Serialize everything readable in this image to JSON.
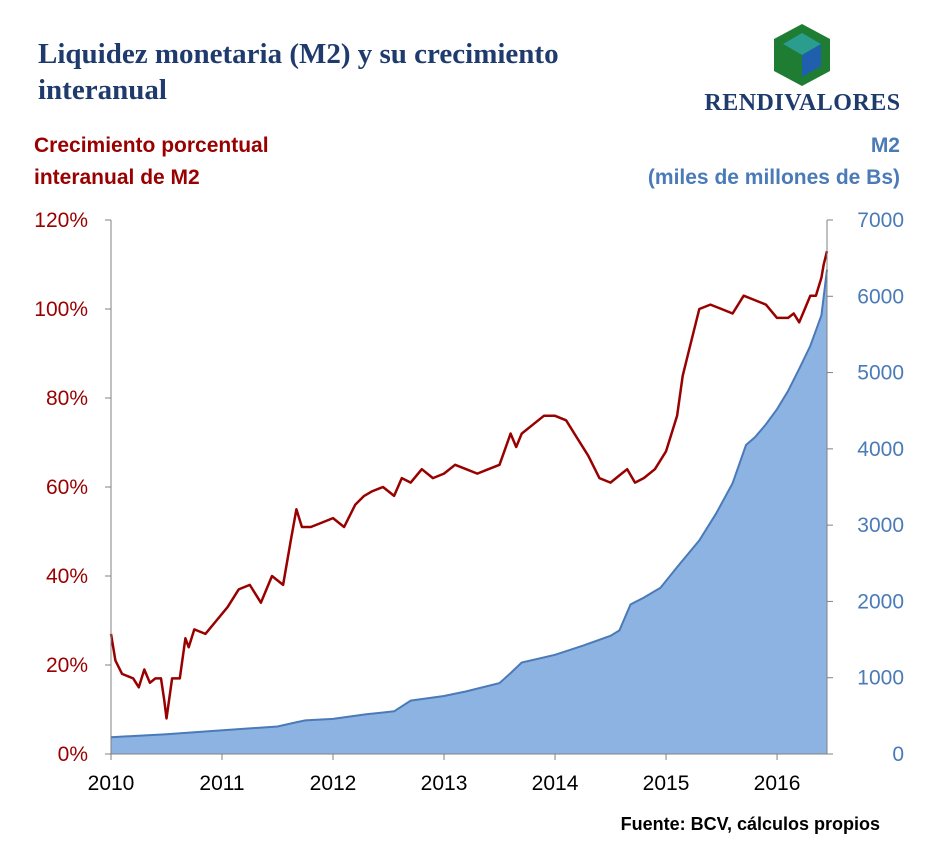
{
  "title": "Liquidez monetaria (M2) y su crecimiento interanual",
  "logo": {
    "text": "RENDIVALORES",
    "colors": {
      "top": "#2a9d8f",
      "left": "#1e7d33",
      "right": "#1f5fae"
    }
  },
  "source": "Fuente: BCV, cálculos propios",
  "colors": {
    "growth_line": "#990000",
    "m2_area": "#8db3e2",
    "m2_edge": "#4a7ab8"
  },
  "chart_data": {
    "type": "line",
    "title": "Liquidez monetaria (M2) y su crecimiento interanual",
    "xlabel": "",
    "ylabel": "Crecimiento porcentual interanual de M2",
    "y2label": "M2 (miles de millones de Bs)",
    "ylabel_lines": [
      "Crecimiento porcentual",
      "interanual de M2"
    ],
    "y2label_lines": [
      "M2",
      "(miles de millones de Bs)"
    ],
    "xlim": [
      2010,
      2016.45
    ],
    "ylim": [
      0,
      120
    ],
    "y2lim": [
      0,
      7000
    ],
    "xticks": [
      "2010",
      "2011",
      "2012",
      "2013",
      "2014",
      "2015",
      "2016"
    ],
    "yticks": [
      "0%",
      "20%",
      "40%",
      "60%",
      "80%",
      "100%",
      "120%"
    ],
    "y2ticks": [
      "0",
      "1000",
      "2000",
      "3000",
      "4000",
      "5000",
      "6000",
      "7000"
    ],
    "grid": false,
    "series": [
      {
        "name": "",
        "axis": "left",
        "type": "line",
        "x": [
          2010.0,
          2010.04,
          2010.1,
          2010.2,
          2010.25,
          2010.3,
          2010.35,
          2010.4,
          2010.45,
          2010.48,
          2010.5,
          2010.55,
          2010.62,
          2010.67,
          2010.7,
          2010.75,
          2010.85,
          2010.95,
          2011.05,
          2011.15,
          2011.25,
          2011.35,
          2011.45,
          2011.55,
          2011.62,
          2011.67,
          2011.72,
          2011.8,
          2011.9,
          2012.0,
          2012.1,
          2012.2,
          2012.28,
          2012.35,
          2012.45,
          2012.55,
          2012.62,
          2012.7,
          2012.8,
          2012.9,
          2013.0,
          2013.1,
          2013.2,
          2013.3,
          2013.4,
          2013.5,
          2013.6,
          2013.65,
          2013.7,
          2013.8,
          2013.9,
          2014.0,
          2014.1,
          2014.2,
          2014.3,
          2014.4,
          2014.5,
          2014.6,
          2014.65,
          2014.72,
          2014.8,
          2014.9,
          2015.0,
          2015.1,
          2015.15,
          2015.2,
          2015.3,
          2015.4,
          2015.5,
          2015.6,
          2015.7,
          2015.8,
          2015.9,
          2016.0,
          2016.1,
          2016.15,
          2016.2,
          2016.25,
          2016.3,
          2016.35,
          2016.4,
          2016.42,
          2016.45
        ],
        "values": [
          27,
          21,
          18,
          17,
          15,
          19,
          16,
          17,
          17,
          12,
          8,
          17,
          17,
          26,
          24,
          28,
          27,
          30,
          33,
          37,
          38,
          34,
          40,
          38,
          48,
          55,
          51,
          51,
          52,
          53,
          51,
          56,
          58,
          59,
          60,
          58,
          62,
          61,
          64,
          62,
          63,
          65,
          64,
          63,
          64,
          65,
          72,
          69,
          72,
          74,
          76,
          76,
          75,
          71,
          67,
          62,
          61,
          63,
          64,
          61,
          62,
          64,
          68,
          76,
          85,
          90,
          100,
          101,
          100,
          99,
          103,
          102,
          101,
          98,
          98,
          99,
          97,
          100,
          103,
          103,
          107,
          110,
          113
        ]
      },
      {
        "name": "",
        "axis": "right",
        "type": "area",
        "x": [
          2010.0,
          2010.5,
          2010.8,
          2011.2,
          2011.5,
          2011.68,
          2011.75,
          2012.0,
          2012.3,
          2012.55,
          2012.7,
          2013.0,
          2013.2,
          2013.5,
          2013.6,
          2013.7,
          2014.0,
          2014.25,
          2014.5,
          2014.58,
          2014.68,
          2014.8,
          2014.95,
          2015.1,
          2015.3,
          2015.45,
          2015.6,
          2015.72,
          2015.8,
          2015.9,
          2016.0,
          2016.1,
          2016.2,
          2016.3,
          2016.4,
          2016.45
        ],
        "values": [
          220,
          260,
          290,
          330,
          360,
          420,
          440,
          460,
          520,
          560,
          700,
          760,
          820,
          930,
          1060,
          1200,
          1300,
          1420,
          1550,
          1620,
          1960,
          2050,
          2180,
          2450,
          2800,
          3150,
          3550,
          4050,
          4150,
          4320,
          4520,
          4760,
          5050,
          5350,
          5750,
          6350
        ]
      }
    ]
  }
}
